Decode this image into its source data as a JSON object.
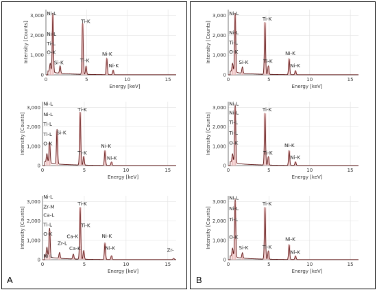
{
  "panel_labels": {
    "left": "A",
    "right": "B"
  },
  "axis_text": {
    "ylabel": "Intensity [Counts]",
    "xlabel": "Energy [keV]"
  },
  "colors": {
    "spectrum": "#5a0f0f",
    "peak_fill": "#f2c6c6",
    "peak_line": "#d9a0a0",
    "grid": "#e2e2e2",
    "axis": "#555555",
    "frame": "#000000"
  },
  "chart_data": [
    {
      "id": "A1",
      "type": "line",
      "xlabel": "Energy [keV]",
      "ylabel": "Intensity [Counts]",
      "xlim": [
        0,
        16
      ],
      "ylim": [
        0,
        3300
      ],
      "grid": true,
      "xticks": [
        "0",
        "5",
        "10",
        "15"
      ],
      "yticks": [
        "0",
        "1,000",
        "2,000",
        "3,000"
      ],
      "series": [
        {
          "peaks": [
            [
              0.53,
              420
            ],
            [
              0.85,
              3000
            ],
            [
              1.74,
              380
            ],
            [
              4.51,
              2600
            ],
            [
              4.93,
              420
            ],
            [
              7.48,
              820
            ],
            [
              8.26,
              230
            ]
          ]
        }
      ],
      "annotations": [
        {
          "text": "Ni-L",
          "x": 0.1,
          "y": 3030
        },
        {
          "text": "Ni-L",
          "x": 0.1,
          "y": 1980
        },
        {
          "text": "Ti-L",
          "x": 0.1,
          "y": 1500
        },
        {
          "text": "O-K",
          "x": 0.1,
          "y": 1060
        },
        {
          "text": "Si-K",
          "x": 1.0,
          "y": 540
        },
        {
          "text": "Ti-K",
          "x": 4.3,
          "y": 2620
        },
        {
          "text": "Ti-K",
          "x": 4.2,
          "y": 640
        },
        {
          "text": "Ni-K",
          "x": 6.9,
          "y": 980
        },
        {
          "text": "Ni-K",
          "x": 7.7,
          "y": 380
        }
      ]
    },
    {
      "id": "A2",
      "type": "line",
      "xlabel": "Energy [keV]",
      "ylabel": "Intensity [Counts]",
      "xlim": [
        0,
        16
      ],
      "ylim": [
        0,
        3300
      ],
      "grid": true,
      "xticks": [
        "0",
        "5",
        "10",
        "15"
      ],
      "yticks": [
        "0",
        "1,000",
        "2,000",
        "3,000"
      ],
      "series": [
        {
          "peaks": [
            [
              0.53,
              450
            ],
            [
              0.85,
              1100
            ],
            [
              1.74,
              1800
            ],
            [
              4.51,
              2750
            ],
            [
              4.93,
              450
            ],
            [
              7.48,
              760
            ],
            [
              8.26,
              180
            ]
          ]
        }
      ],
      "annotations": [
        {
          "text": "Ni-L",
          "x": 0.1,
          "y": 3100
        },
        {
          "text": "Ni-L",
          "x": 0.1,
          "y": 2550
        },
        {
          "text": "Ti-L",
          "x": 0.1,
          "y": 2050
        },
        {
          "text": "Ti-L",
          "x": 0.1,
          "y": 1520
        },
        {
          "text": "O-K",
          "x": 0.1,
          "y": 1050
        },
        {
          "text": "Si-K",
          "x": 1.7,
          "y": 1620
        },
        {
          "text": "Ti-K",
          "x": 4.2,
          "y": 2800
        },
        {
          "text": "Ti-K",
          "x": 4.2,
          "y": 560
        },
        {
          "text": "Ni-K",
          "x": 7.0,
          "y": 920
        },
        {
          "text": "Ni-K",
          "x": 7.7,
          "y": 310
        }
      ]
    },
    {
      "id": "A3",
      "type": "line",
      "xlabel": "Energy [keV]",
      "ylabel": "Intensity [Counts]",
      "xlim": [
        0,
        16
      ],
      "ylim": [
        0,
        3300
      ],
      "grid": true,
      "xticks": [
        "0",
        "5",
        "10",
        "15"
      ],
      "yticks": [
        "0",
        "1,000",
        "2,000",
        "3,000"
      ],
      "series": [
        {
          "peaks": [
            [
              0.53,
              480
            ],
            [
              0.85,
              1500
            ],
            [
              2.04,
              300
            ],
            [
              3.69,
              250
            ],
            [
              4.51,
              2700
            ],
            [
              4.93,
              450
            ],
            [
              7.48,
              850
            ],
            [
              8.26,
              200
            ],
            [
              15.7,
              60
            ]
          ]
        }
      ],
      "annotations": [
        {
          "text": "Ni-L",
          "x": 0.1,
          "y": 3150
        },
        {
          "text": "Zr-M",
          "x": 0.1,
          "y": 2650
        },
        {
          "text": "Ca-L",
          "x": 0.1,
          "y": 2220
        },
        {
          "text": "Ti-L",
          "x": 0.1,
          "y": 1720
        },
        {
          "text": "O-K",
          "x": 0.1,
          "y": 1250
        },
        {
          "text": "Zr-L",
          "x": 1.8,
          "y": 770
        },
        {
          "text": "Ca-K",
          "x": 2.9,
          "y": 1120
        },
        {
          "text": "Ca-K",
          "x": 3.2,
          "y": 490
        },
        {
          "text": "Ti-K",
          "x": 4.2,
          "y": 2800
        },
        {
          "text": "Ti-K",
          "x": 4.6,
          "y": 1690
        },
        {
          "text": "Ni-K",
          "x": 7.1,
          "y": 1140
        },
        {
          "text": "Ni-K",
          "x": 7.5,
          "y": 520
        },
        {
          "text": "Ni-L",
          "x": 0.1,
          "y": 100
        },
        {
          "text": "Zr-",
          "x": 14.9,
          "y": 400
        }
      ]
    },
    {
      "id": "B1",
      "type": "line",
      "xlabel": "Energy [keV]",
      "ylabel": "Intensity [Counts]",
      "xlim": [
        0,
        16
      ],
      "ylim": [
        0,
        3300
      ],
      "grid": true,
      "xticks": [
        "0",
        "5",
        "10",
        "15"
      ],
      "yticks": [
        "0",
        "1,000",
        "2,000",
        "3,000"
      ],
      "series": [
        {
          "peaks": [
            [
              0.53,
              420
            ],
            [
              0.85,
              3000
            ],
            [
              1.74,
              320
            ],
            [
              4.51,
              2650
            ],
            [
              4.93,
              430
            ],
            [
              7.48,
              800
            ],
            [
              8.26,
              210
            ]
          ]
        }
      ],
      "annotations": [
        {
          "text": "Ni-L",
          "x": 0.1,
          "y": 3030
        },
        {
          "text": "Ni-L",
          "x": 0.1,
          "y": 2050
        },
        {
          "text": "Ti-L",
          "x": 0.1,
          "y": 1550
        },
        {
          "text": "O-K",
          "x": 0.1,
          "y": 1080
        },
        {
          "text": "Si-K",
          "x": 1.3,
          "y": 560
        },
        {
          "text": "Ti-K",
          "x": 4.2,
          "y": 2750
        },
        {
          "text": "Ti-K",
          "x": 4.3,
          "y": 600
        },
        {
          "text": "Ni-K",
          "x": 7.0,
          "y": 1000
        },
        {
          "text": "Ni-K",
          "x": 7.6,
          "y": 380
        }
      ]
    },
    {
      "id": "B2",
      "type": "line",
      "xlabel": "Energy [keV]",
      "ylabel": "Intensity [Counts]",
      "xlim": [
        0,
        16
      ],
      "ylim": [
        0,
        3300
      ],
      "grid": true,
      "xticks": [
        "0",
        "5",
        "10",
        "15"
      ],
      "yticks": [
        "0",
        "1,000",
        "2,000",
        "3,000"
      ],
      "series": [
        {
          "peaks": [
            [
              0.53,
              440
            ],
            [
              0.85,
              3000
            ],
            [
              4.51,
              2700
            ],
            [
              4.93,
              440
            ],
            [
              7.48,
              760
            ],
            [
              8.26,
              190
            ]
          ]
        }
      ],
      "annotations": [
        {
          "text": "Ni-L",
          "x": 0.1,
          "y": 3100
        },
        {
          "text": "Ni-L",
          "x": 0.1,
          "y": 2650
        },
        {
          "text": "Ti-L",
          "x": 0.1,
          "y": 2150
        },
        {
          "text": "Ti-L",
          "x": 0.1,
          "y": 1600
        },
        {
          "text": "O-K",
          "x": 0.1,
          "y": 1080
        },
        {
          "text": "Ti-K",
          "x": 4.2,
          "y": 2800
        },
        {
          "text": "Ti-K",
          "x": 4.3,
          "y": 560
        },
        {
          "text": "Ni-K",
          "x": 6.9,
          "y": 950
        },
        {
          "text": "Ni-K",
          "x": 7.6,
          "y": 330
        }
      ]
    },
    {
      "id": "B3",
      "type": "line",
      "xlabel": "Energy [keV]",
      "ylabel": "Intensity [Counts]",
      "xlim": [
        0,
        16
      ],
      "ylim": [
        0,
        3300
      ],
      "grid": true,
      "xticks": [
        "0",
        "5",
        "10",
        "15"
      ],
      "yticks": [
        "0",
        "1,000",
        "2,000",
        "3,000"
      ],
      "series": [
        {
          "peaks": [
            [
              0.53,
              430
            ],
            [
              0.85,
              3000
            ],
            [
              1.74,
              280
            ],
            [
              4.51,
              2700
            ],
            [
              4.93,
              430
            ],
            [
              7.48,
              760
            ],
            [
              8.26,
              190
            ]
          ]
        }
      ],
      "annotations": [
        {
          "text": "Ni-L",
          "x": 0.1,
          "y": 3100
        },
        {
          "text": "Ni-L",
          "x": 0.1,
          "y": 2550
        },
        {
          "text": "Ti-L",
          "x": 0.1,
          "y": 1980
        },
        {
          "text": "O-K",
          "x": 0.1,
          "y": 1080
        },
        {
          "text": "Si-K",
          "x": 1.3,
          "y": 540
        },
        {
          "text": "Ti-K",
          "x": 4.2,
          "y": 2800
        },
        {
          "text": "Ti-K",
          "x": 4.2,
          "y": 560
        },
        {
          "text": "Ni-K",
          "x": 7.0,
          "y": 980
        },
        {
          "text": "Ni-K",
          "x": 7.6,
          "y": 300
        }
      ]
    }
  ]
}
